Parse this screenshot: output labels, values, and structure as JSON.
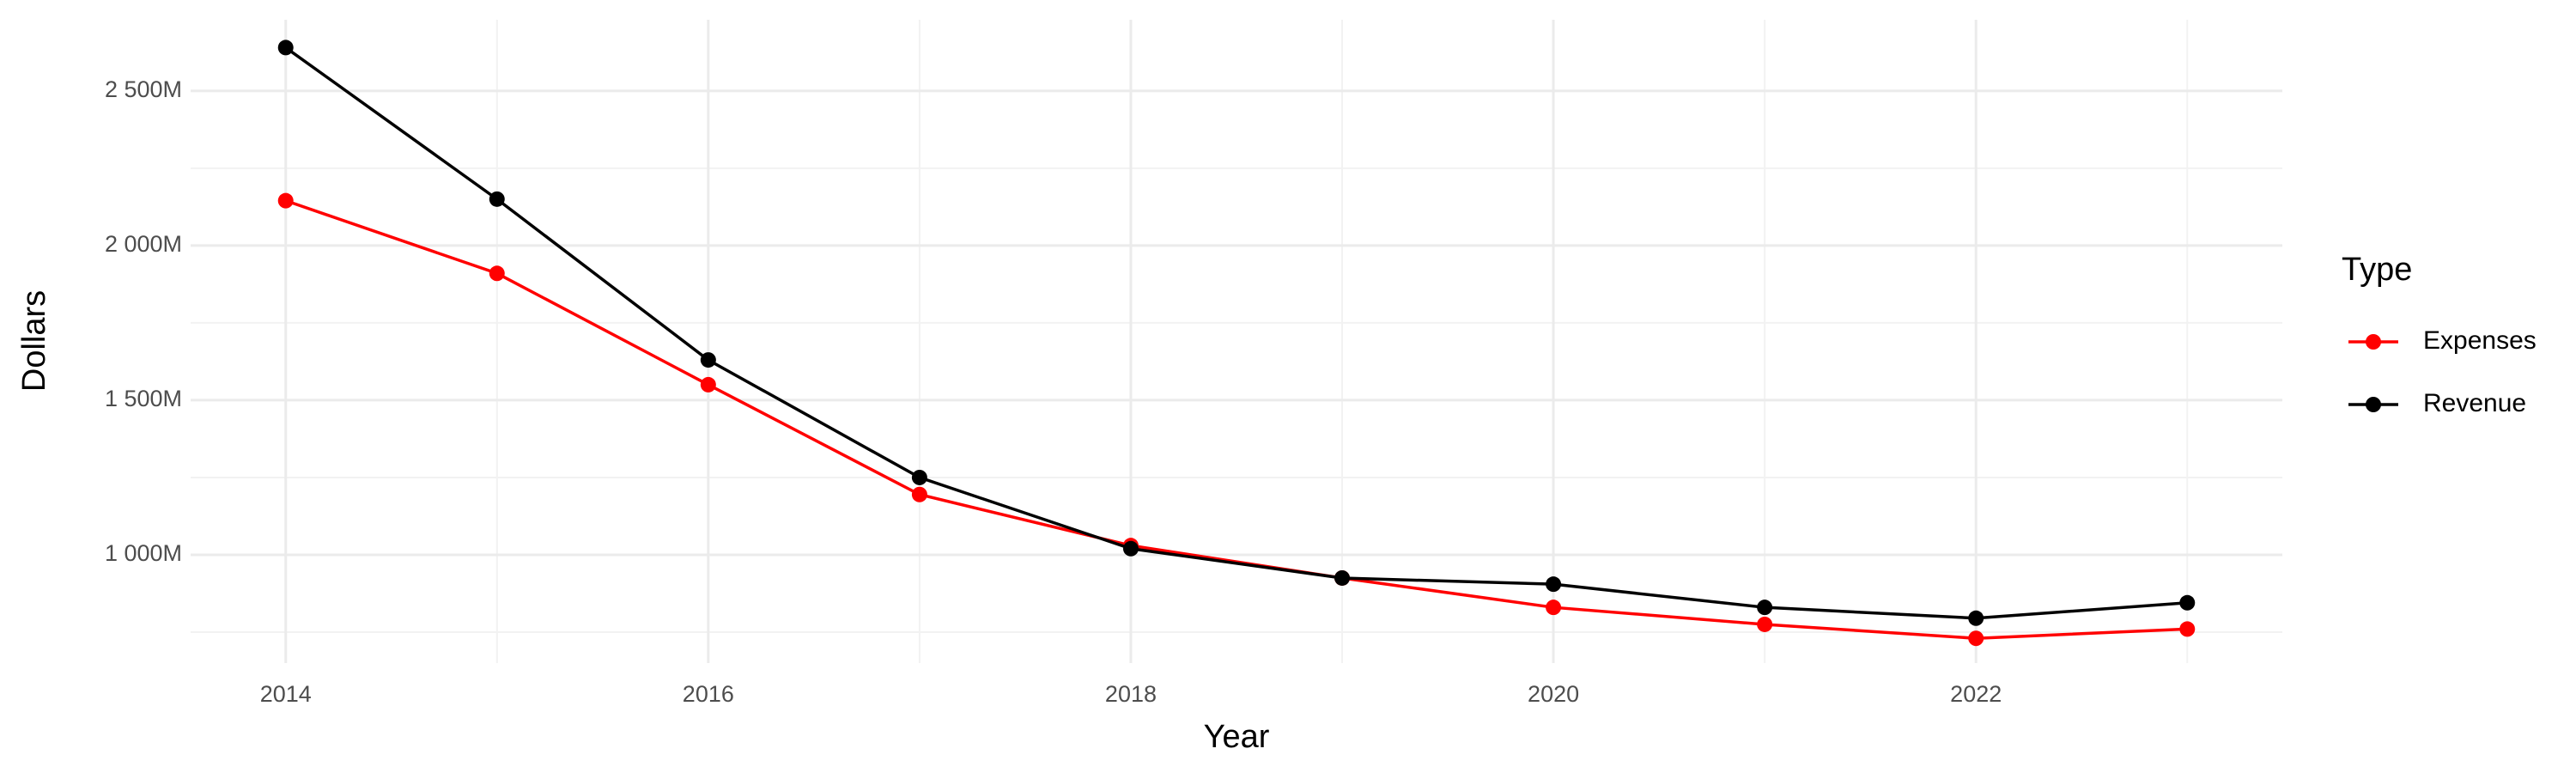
{
  "chart_data": {
    "type": "line",
    "x_label": "Year",
    "y_label": "Dollars",
    "legend_title": "Type",
    "x": [
      2014,
      2015,
      2016,
      2017,
      2018,
      2019,
      2020,
      2021,
      2022,
      2023
    ],
    "series": [
      {
        "name": "Expenses",
        "color": "#ff0000",
        "values": [
          2145,
          1910,
          1550,
          1195,
          1030,
          925,
          830,
          775,
          730,
          760
        ]
      },
      {
        "name": "Revenue",
        "color": "#000000",
        "values": [
          2640,
          2150,
          1630,
          1250,
          1020,
          925,
          905,
          830,
          795,
          845
        ]
      }
    ],
    "xlim": [
      2013.55,
      2023.45
    ],
    "xticks": [
      2014,
      2016,
      2018,
      2020,
      2022
    ],
    "ylim": [
      650,
      2730
    ],
    "yticks": [
      {
        "value": 1000,
        "label": "1 000M"
      },
      {
        "value": 1500,
        "label": "1 500M"
      },
      {
        "value": 2000,
        "label": "2 000M"
      },
      {
        "value": 2500,
        "label": "2 500M"
      }
    ],
    "grid": true,
    "legend": "right"
  }
}
